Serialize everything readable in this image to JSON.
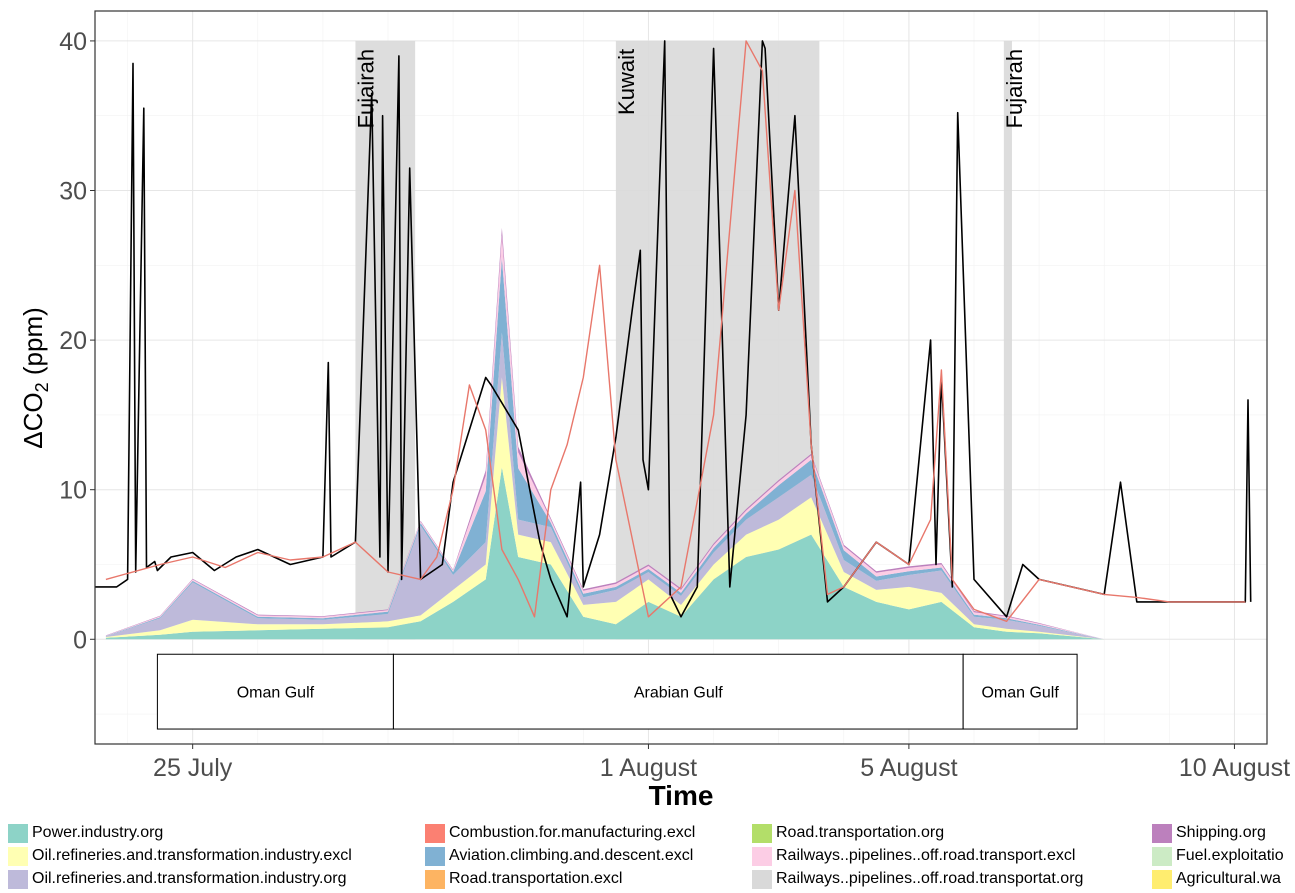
{
  "chart_data": {
    "type": "area",
    "xlabel": "Time",
    "ylabel_prefix": "ΔCO",
    "ylabel_sub": "2",
    "ylabel_suffix": " (ppm)",
    "ylim": [
      -7,
      42
    ],
    "y_ticks": [
      0,
      10,
      20,
      30,
      40
    ],
    "x_range": [
      "2016-07-23T12:00",
      "2016-08-10T12:00"
    ],
    "x_ticks": [
      {
        "label": "25 July",
        "date": "2016-07-25"
      },
      {
        "label": "1 August",
        "date": "2016-08-01"
      },
      {
        "label": "5 August",
        "date": "2016-08-05"
      },
      {
        "label": "10 August",
        "date": "2016-08-10"
      }
    ],
    "grid": true,
    "legend_position": "bottom",
    "shaded_periods": [
      {
        "label": "Fujairah",
        "start": "2016-07-27T12:00",
        "end": "2016-07-28T10:00"
      },
      {
        "label": "Kuwait",
        "start": "2016-07-31T12:00",
        "end": "2016-08-03T15:00"
      },
      {
        "label": "Fujairah",
        "start": "2016-08-06T11:00",
        "end": "2016-08-06T14:00"
      }
    ],
    "regions": [
      {
        "label": "Oman Gulf",
        "start": "2016-07-24T11:00",
        "end": "2016-07-28T02:00"
      },
      {
        "label": "Arabian Gulf",
        "start": "2016-07-28T02:00",
        "end": "2016-08-05T20:00"
      },
      {
        "label": "Oman Gulf",
        "start": "2016-08-05T20:00",
        "end": "2016-08-07T14:00"
      }
    ],
    "legend": [
      {
        "name": "Power.industry.org",
        "color": "#8dd3c7"
      },
      {
        "name": "Oil.refineries.and.transformation.industry.excl",
        "color": "#ffffb3"
      },
      {
        "name": "Oil.refineries.and.transformation.industry.org",
        "color": "#bebada"
      },
      {
        "name": "Combustion.for.manufacturing.excl",
        "color": "#fb8072"
      },
      {
        "name": "Aviation.climbing.and.descent.excl",
        "color": "#80b1d3"
      },
      {
        "name": "Road.transportation.excl",
        "color": "#fdb462"
      },
      {
        "name": "Road.transportation.org",
        "color": "#b3de69"
      },
      {
        "name": "Railways..pipelines..off.road.transport.excl",
        "color": "#fccde5"
      },
      {
        "name": "Railways..pipelines..off.road.transportat.org",
        "color": "#d9d9d9"
      },
      {
        "name": "Shipping.org",
        "color": "#bc80bd"
      },
      {
        "name": "Fuel.exploitatio",
        "color": "#ccebc5"
      },
      {
        "name": "Agricultural.wa",
        "color": "#ffed6f"
      }
    ],
    "series": [
      {
        "name": "Power.industry.org",
        "color": "#8dd3c7",
        "x": [
          "2016-07-23T16:00",
          "2016-07-24T12:00",
          "2016-07-25T00:00",
          "2016-07-26T00:00",
          "2016-07-27T00:00",
          "2016-07-28T00:00",
          "2016-07-28T12:00",
          "2016-07-29T00:00",
          "2016-07-29T12:00",
          "2016-07-29T18:00",
          "2016-07-30T00:00",
          "2016-07-30T12:00",
          "2016-07-31T00:00",
          "2016-07-31T12:00",
          "2016-08-01T00:00",
          "2016-08-01T12:00",
          "2016-08-02T00:00",
          "2016-08-02T12:00",
          "2016-08-03T00:00",
          "2016-08-03T12:00",
          "2016-08-04T00:00",
          "2016-08-04T12:00",
          "2016-08-05T00:00",
          "2016-08-05T12:00",
          "2016-08-06T00:00",
          "2016-08-06T12:00",
          "2016-08-07T00:00",
          "2016-08-07T12:00",
          "2016-08-08T00:00"
        ],
        "values": [
          0.1,
          0.3,
          0.5,
          0.6,
          0.7,
          0.8,
          1.2,
          2.5,
          4.0,
          11.5,
          5.5,
          5.0,
          1.5,
          1.0,
          2.5,
          1.5,
          4.0,
          5.5,
          6.0,
          7.0,
          3.5,
          2.5,
          2.0,
          2.5,
          0.8,
          0.5,
          0.4,
          0.2,
          0
        ]
      },
      {
        "name": "Oil.refineries.and.transformation.industry.excl",
        "color": "#ffffb3",
        "x": [
          "2016-07-23T16:00",
          "2016-07-24T12:00",
          "2016-07-25T00:00",
          "2016-07-26T00:00",
          "2016-07-27T00:00",
          "2016-07-28T00:00",
          "2016-07-28T12:00",
          "2016-07-29T00:00",
          "2016-07-29T12:00",
          "2016-07-29T18:00",
          "2016-07-30T00:00",
          "2016-07-30T12:00",
          "2016-07-31T00:00",
          "2016-07-31T12:00",
          "2016-08-01T00:00",
          "2016-08-01T12:00",
          "2016-08-02T00:00",
          "2016-08-02T12:00",
          "2016-08-03T00:00",
          "2016-08-03T12:00",
          "2016-08-04T00:00",
          "2016-08-04T12:00",
          "2016-08-05T00:00",
          "2016-08-05T12:00",
          "2016-08-06T00:00",
          "2016-08-06T12:00",
          "2016-08-07T00:00",
          "2016-08-07T12:00",
          "2016-08-08T00:00"
        ],
        "values": [
          0.05,
          0.3,
          0.8,
          0.4,
          0.3,
          0.4,
          0.4,
          0.8,
          1.0,
          6.0,
          1.5,
          1.5,
          0.8,
          1.5,
          1.5,
          0.8,
          1.0,
          1.5,
          2.0,
          2.5,
          1.0,
          0.8,
          1.5,
          0.6,
          0.2,
          0.2,
          0.1,
          0.05,
          0
        ]
      },
      {
        "name": "Oil.refineries.and.transformation.industry.org",
        "color": "#bebada",
        "x": [
          "2016-07-23T16:00",
          "2016-07-24T12:00",
          "2016-07-25T00:00",
          "2016-07-26T00:00",
          "2016-07-27T00:00",
          "2016-07-28T00:00",
          "2016-07-28T12:00",
          "2016-07-29T00:00",
          "2016-07-29T12:00",
          "2016-07-29T18:00",
          "2016-07-30T00:00",
          "2016-07-30T12:00",
          "2016-07-31T00:00",
          "2016-07-31T12:00",
          "2016-08-01T00:00",
          "2016-08-01T12:00",
          "2016-08-02T00:00",
          "2016-08-02T12:00",
          "2016-08-03T00:00",
          "2016-08-03T12:00",
          "2016-08-04T00:00",
          "2016-08-04T12:00",
          "2016-08-05T00:00",
          "2016-08-05T12:00",
          "2016-08-06T00:00",
          "2016-08-06T12:00",
          "2016-08-07T00:00",
          "2016-08-07T12:00",
          "2016-08-08T00:00"
        ],
        "values": [
          0.05,
          0.8,
          2.5,
          0.4,
          0.3,
          0.5,
          6.0,
          1.0,
          1.5,
          3.0,
          1.0,
          1.0,
          0.5,
          0.8,
          0.5,
          0.6,
          0.8,
          1.0,
          1.5,
          1.5,
          0.8,
          0.6,
          0.8,
          1.5,
          0.5,
          0.6,
          0.4,
          0.2,
          0
        ]
      },
      {
        "name": "Aviation.climbing.and.descent.excl",
        "color": "#80b1d3",
        "x": [
          "2016-07-23T16:00",
          "2016-07-25T00:00",
          "2016-07-27T00:00",
          "2016-07-29T00:00",
          "2016-07-29T18:00",
          "2016-07-30T12:00",
          "2016-07-31T12:00",
          "2016-08-01T12:00",
          "2016-08-02T12:00",
          "2016-08-03T00:00",
          "2016-08-03T12:00",
          "2016-08-04T12:00",
          "2016-08-05T12:00",
          "2016-08-06T12:00",
          "2016-08-08T00:00"
        ],
        "values": [
          0.02,
          0.1,
          0.1,
          0.2,
          5.0,
          0.3,
          0.2,
          0.2,
          0.4,
          0.8,
          1.0,
          0.3,
          0.2,
          0.1,
          0
        ]
      },
      {
        "name": "Railways..pipelines..off.road.transport.excl",
        "color": "#fccde5",
        "x": [
          "2016-07-23T16:00",
          "2016-07-25T00:00",
          "2016-07-27T00:00",
          "2016-07-29T00:00",
          "2016-07-29T18:00",
          "2016-07-30T12:00",
          "2016-07-31T12:00",
          "2016-08-02T12:00",
          "2016-08-03T12:00",
          "2016-08-05T12:00",
          "2016-08-08T00:00"
        ],
        "values": [
          0.02,
          0.1,
          0.1,
          0.1,
          1.5,
          0.2,
          0.2,
          0.2,
          0.3,
          0.2,
          0
        ]
      },
      {
        "name": "Shipping.org",
        "color": "#bc80bd",
        "x": [
          "2016-07-23T16:00",
          "2016-07-25T00:00",
          "2016-07-27T00:00",
          "2016-07-29T00:00",
          "2016-07-29T18:00",
          "2016-07-30T12:00",
          "2016-08-01T00:00",
          "2016-08-03T12:00",
          "2016-08-05T12:00",
          "2016-08-08T00:00"
        ],
        "values": [
          0.02,
          0.05,
          0.05,
          0.05,
          0.5,
          0.1,
          0.1,
          0.1,
          0.1,
          0
        ]
      }
    ],
    "observed": {
      "name": "",
      "color": "#000000",
      "x": [
        "2016-07-23T12:00",
        "2016-07-23T20:00",
        "2016-07-24T00:00",
        "2016-07-24T02:00",
        "2016-07-24T03:00",
        "2016-07-24T06:00",
        "2016-07-24T07:00",
        "2016-07-24T10:00",
        "2016-07-24T11:00",
        "2016-07-24T16:00",
        "2016-07-25T00:00",
        "2016-07-25T08:00",
        "2016-07-25T16:00",
        "2016-07-26T00:00",
        "2016-07-26T06:00",
        "2016-07-26T12:00",
        "2016-07-27T00:00",
        "2016-07-27T02:00",
        "2016-07-27T03:00",
        "2016-07-27T12:00",
        "2016-07-27T18:00",
        "2016-07-27T21:00",
        "2016-07-27T22:00",
        "2016-07-28T00:00",
        "2016-07-28T04:00",
        "2016-07-28T05:00",
        "2016-07-28T08:00",
        "2016-07-28T12:00",
        "2016-07-28T20:00",
        "2016-07-29T00:00",
        "2016-07-29T12:00",
        "2016-07-29T14:00",
        "2016-07-30T00:00",
        "2016-07-30T08:00",
        "2016-07-30T12:00",
        "2016-07-30T18:00",
        "2016-07-30T23:00",
        "2016-07-31T00:00",
        "2016-07-31T06:00",
        "2016-07-31T12:00",
        "2016-07-31T18:00",
        "2016-07-31T21:00",
        "2016-07-31T22:00",
        "2016-08-01T00:00",
        "2016-08-01T06:00",
        "2016-08-01T08:00",
        "2016-08-01T12:00",
        "2016-08-01T18:00",
        "2016-08-02T00:00",
        "2016-08-02T06:00",
        "2016-08-02T12:00",
        "2016-08-02T18:00",
        "2016-08-02T19:00",
        "2016-08-03T00:00",
        "2016-08-03T06:00",
        "2016-08-03T12:00",
        "2016-08-03T18:00",
        "2016-08-04T00:00",
        "2016-08-04T12:00",
        "2016-08-05T00:00",
        "2016-08-05T08:00",
        "2016-08-05T10:00",
        "2016-08-05T12:00",
        "2016-08-05T16:00",
        "2016-08-05T18:00",
        "2016-08-06T00:00",
        "2016-08-06T12:00",
        "2016-08-06T18:00",
        "2016-08-07T00:00",
        "2016-08-07T12:00",
        "2016-08-08T00:00",
        "2016-08-08T06:00",
        "2016-08-08T12:00",
        "2016-08-09T00:00",
        "2016-08-09T12:00",
        "2016-08-10T00:00",
        "2016-08-10T04:00",
        "2016-08-10T05:00",
        "2016-08-10T06:00"
      ],
      "values": [
        3.5,
        3.5,
        4.0,
        38.5,
        4.5,
        35.5,
        4.8,
        5.2,
        4.6,
        5.5,
        5.8,
        4.6,
        5.5,
        6.0,
        5.5,
        5.0,
        5.5,
        18.5,
        5.5,
        6.5,
        36.5,
        5.5,
        35.0,
        4.5,
        39.0,
        4.0,
        31.5,
        4.0,
        5.0,
        10.5,
        17.5,
        17.0,
        14.0,
        6.5,
        4.0,
        1.5,
        10.5,
        3.5,
        7.0,
        13.5,
        22.0,
        26.0,
        12.0,
        10.0,
        40.0,
        3.0,
        1.5,
        3.5,
        39.5,
        3.5,
        15.0,
        40.0,
        39.5,
        22.0,
        35.0,
        13.0,
        2.5,
        3.5,
        6.5,
        5.0,
        20.0,
        5.0,
        17.5,
        3.5,
        35.2,
        4.0,
        1.5,
        5.0,
        4.0,
        3.5,
        3.0,
        10.5,
        2.5,
        2.5,
        2.5,
        2.5,
        2.5,
        16.0,
        2.5
      ]
    },
    "modelled": {
      "name": "",
      "color": "#e8776b",
      "x": [
        "2016-07-23T16:00",
        "2016-07-24T12:00",
        "2016-07-25T00:00",
        "2016-07-25T12:00",
        "2016-07-26T00:00",
        "2016-07-26T12:00",
        "2016-07-27T00:00",
        "2016-07-27T12:00",
        "2016-07-28T00:00",
        "2016-07-28T12:00",
        "2016-07-28T18:00",
        "2016-07-29T00:00",
        "2016-07-29T06:00",
        "2016-07-29T12:00",
        "2016-07-29T18:00",
        "2016-07-30T00:00",
        "2016-07-30T06:00",
        "2016-07-30T12:00",
        "2016-07-30T18:00",
        "2016-07-31T00:00",
        "2016-07-31T06:00",
        "2016-07-31T12:00",
        "2016-08-01T00:00",
        "2016-08-01T12:00",
        "2016-08-02T00:00",
        "2016-08-02T12:00",
        "2016-08-02T18:00",
        "2016-08-03T00:00",
        "2016-08-03T06:00",
        "2016-08-03T12:00",
        "2016-08-03T18:00",
        "2016-08-04T00:00",
        "2016-08-04T12:00",
        "2016-08-05T00:00",
        "2016-08-05T08:00",
        "2016-08-05T12:00",
        "2016-08-05T16:00",
        "2016-08-06T00:00",
        "2016-08-06T12:00",
        "2016-08-07T00:00",
        "2016-08-07T12:00",
        "2016-08-08T00:00",
        "2016-08-08T12:00",
        "2016-08-09T00:00",
        "2016-08-09T12:00",
        "2016-08-10T00:00",
        "2016-08-10T04:00"
      ],
      "values": [
        4.0,
        5.0,
        5.5,
        4.8,
        5.8,
        5.3,
        5.5,
        6.5,
        4.5,
        4.0,
        5.5,
        10.0,
        17.0,
        14.0,
        6.0,
        4.0,
        1.5,
        10.0,
        13.0,
        17.5,
        25.0,
        12.0,
        1.5,
        3.5,
        15.0,
        40.0,
        38.0,
        22.0,
        30.0,
        13.0,
        3.0,
        3.5,
        6.5,
        5.0,
        8.0,
        18.0,
        4.0,
        2.0,
        1.2,
        4.0,
        3.5,
        3.0,
        2.8,
        2.5,
        2.5,
        2.5,
        2.5
      ]
    }
  },
  "regions_labels": [
    "Oman Gulf",
    "Arabian Gulf",
    "Oman Gulf"
  ]
}
